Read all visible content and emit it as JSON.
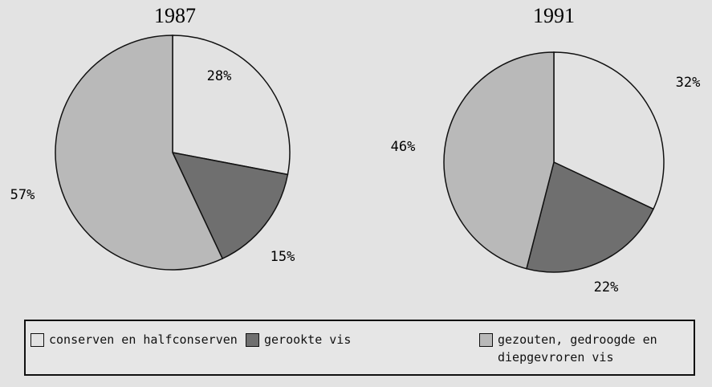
{
  "chart_data": [
    {
      "type": "pie",
      "title": "1987",
      "categories": [
        "conserven en halfconserven",
        "gerookte vis",
        "gezouten, gedroogde en diepgevroren vis"
      ],
      "values": [
        28,
        15,
        57
      ],
      "value_labels": [
        "28%",
        "15%",
        "57%"
      ],
      "colors": [
        "#e2e2e2",
        "#6f6f6f",
        "#b9b9b9"
      ]
    },
    {
      "type": "pie",
      "title": "1991",
      "categories": [
        "conserven en halfconserven",
        "gerookte vis",
        "gezouten, gedroogde en diepgevroren vis"
      ],
      "values": [
        32,
        22,
        46
      ],
      "value_labels": [
        "32%",
        "22%",
        "46%"
      ],
      "colors": [
        "#e2e2e2",
        "#6f6f6f",
        "#b9b9b9"
      ]
    }
  ]
}
